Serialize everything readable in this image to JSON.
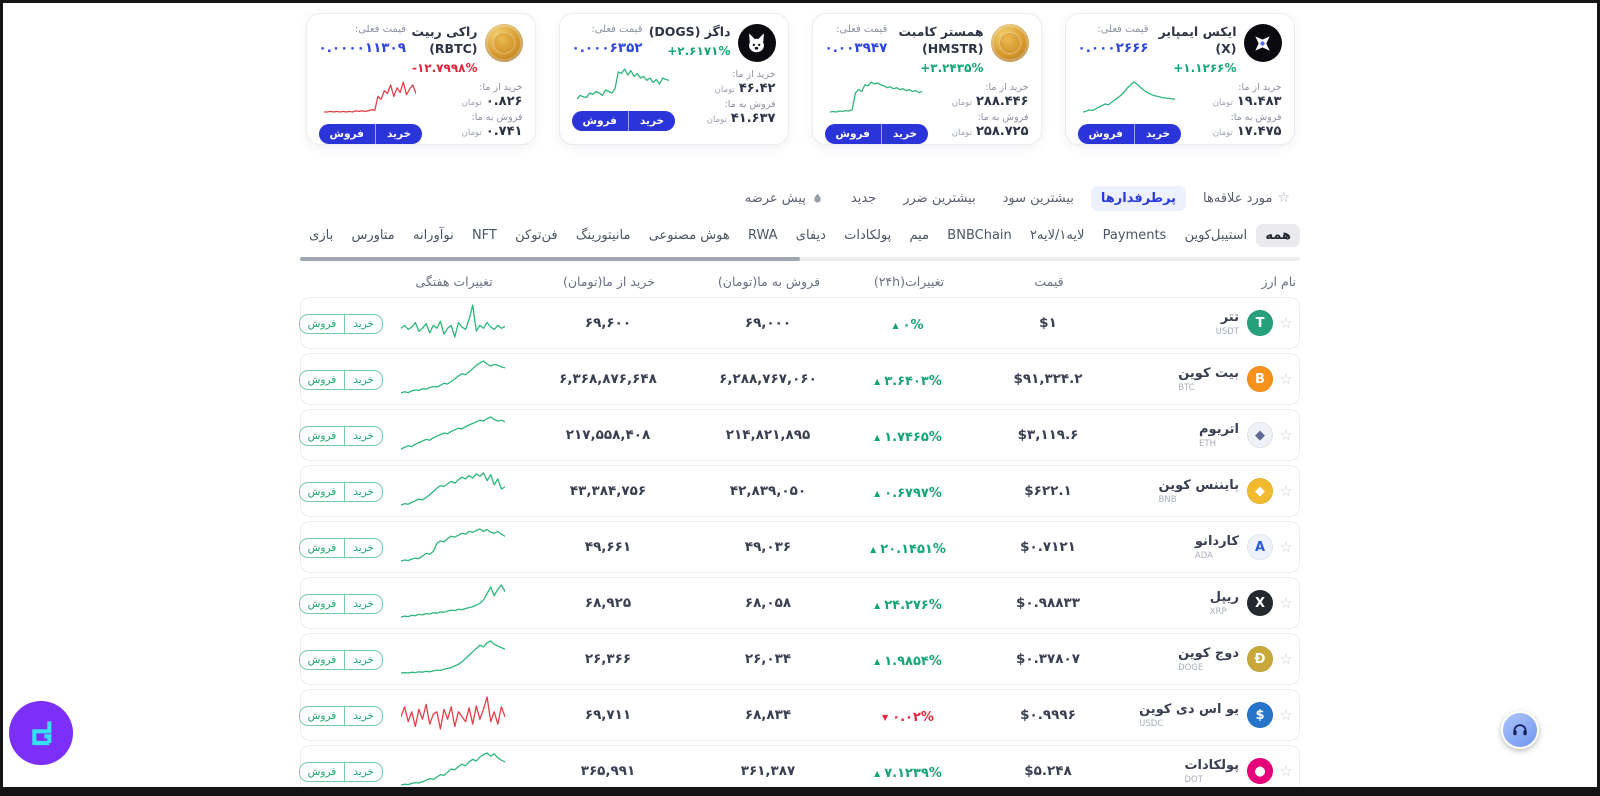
{
  "colors": {
    "accent_blue": "#2b34d8",
    "price_blue": "#2e45df",
    "green": "#17a673",
    "red": "#e3243b",
    "green_line": "#2eb67d",
    "red_line": "#e4404a",
    "active_tab_bg": "#edf0fe",
    "active_cat_bg": "#e9e9ee",
    "purple_fab": "#7b2ff7",
    "cyan_logo": "#35e0f2"
  },
  "icons": {
    "favorite_star": "☆",
    "arrow_up": "▲",
    "arrow_down": "▼"
  },
  "labels": {
    "current_price": "قیمت فعلی:",
    "buy_from_us": "خرید از ما:",
    "sell_to_us": "فروش به ما:",
    "toman": "تومان",
    "buy": "خرید",
    "sell": "فروش"
  },
  "cards": [
    {
      "name": "ایکس ایمپایر (X)",
      "change": "+۱.۱۲۶۶%",
      "trend": "up",
      "price": "۰.۰۰۰۲۶۶۶",
      "buy": "۱۹.۴۸۳",
      "sell": "۱۷.۴۷۵",
      "icon": "x-empire",
      "spark": [
        10,
        12,
        15,
        14,
        18,
        22,
        26,
        30,
        28,
        34,
        40,
        46,
        52,
        60,
        70,
        78,
        85,
        80,
        72,
        66,
        60,
        56,
        52,
        50,
        48,
        46,
        45,
        44,
        43,
        42
      ],
      "spark_trend": "up"
    },
    {
      "name": "همستر کامبت (HMSTR)",
      "change": "+۳.۲۴۳۵%",
      "trend": "up",
      "price": "۰.۰۰۳۹۴۷",
      "buy": "۲۸۸.۴۴۶",
      "sell": "۲۵۸.۷۲۵",
      "icon": "hmstr",
      "spark": [
        15,
        16,
        15,
        17,
        16,
        18,
        17,
        20,
        55,
        62,
        58,
        72,
        70,
        78,
        74,
        76,
        72,
        70,
        66,
        68,
        64,
        66,
        62,
        64,
        60,
        62,
        58,
        60,
        56,
        58
      ],
      "spark_trend": "up"
    },
    {
      "name": "داگز (DOGS)",
      "change": "+۲.۶۱۷۱%",
      "trend": "up",
      "price": "۰.۰۰۰۶۳۵۲",
      "buy": "۴۶.۴۲",
      "sell": "۴۱.۶۳۷",
      "icon": "dogs",
      "spark": [
        30,
        35,
        33,
        32,
        38,
        36,
        40,
        38,
        35,
        42,
        40,
        38,
        44,
        66,
        64,
        70,
        62,
        68,
        60,
        64,
        58,
        60,
        55,
        58,
        52,
        56,
        50,
        58,
        56,
        55
      ],
      "spark_trend": "up"
    },
    {
      "name": "راکی ربیت (RBTC)",
      "change": "-۱۲.۷۹۹۸%",
      "trend": "down",
      "price": "۰.۰۰۰۰۱۱۳۰۹",
      "buy": "۰.۸۲۶",
      "sell": "۰.۷۴۱",
      "icon": "rbtc",
      "spark": [
        8,
        8,
        9,
        8,
        9,
        8,
        9,
        8,
        9,
        8,
        10,
        9,
        10,
        9,
        10,
        12,
        11,
        35,
        30,
        45,
        40,
        55,
        35,
        50,
        42,
        60,
        38,
        48,
        55,
        40
      ],
      "spark_trend": "down"
    }
  ],
  "filter_tabs": [
    {
      "label": "مورد علاقه‌ها",
      "icon": "star",
      "active": false
    },
    {
      "label": "پرطرفدارها",
      "icon": null,
      "active": true
    },
    {
      "label": "بیشترین سود",
      "icon": null,
      "active": false
    },
    {
      "label": "بیشترین ضرر",
      "icon": null,
      "active": false
    },
    {
      "label": "جدید",
      "icon": null,
      "active": false
    },
    {
      "label": "پیش عرضه",
      "icon": "fire",
      "active": false
    }
  ],
  "category_tabs": [
    {
      "label": "همه",
      "active": true
    },
    {
      "label": "استیبل‌کوین",
      "active": false
    },
    {
      "label": "Payments",
      "active": false
    },
    {
      "label": "لایه۱/لایه۲",
      "active": false
    },
    {
      "label": "BNBChain",
      "active": false
    },
    {
      "label": "میم",
      "active": false
    },
    {
      "label": "پولکادات",
      "active": false
    },
    {
      "label": "دیفای",
      "active": false
    },
    {
      "label": "RWA",
      "active": false
    },
    {
      "label": "هوش مصنوعی",
      "active": false
    },
    {
      "label": "مانیتورینگ",
      "active": false
    },
    {
      "label": "فن‌توکن",
      "active": false
    },
    {
      "label": "NFT",
      "active": false
    },
    {
      "label": "نوآورانه",
      "active": false
    },
    {
      "label": "متاورس",
      "active": false
    },
    {
      "label": "بازی",
      "active": false
    }
  ],
  "table": {
    "headers": [
      "نام ارز",
      "قیمت",
      "تغییرات(۲۴h)",
      "فروش به ما(تومان)",
      "خرید از ما(تومان)",
      "تغییرات هفتگی"
    ],
    "rows": [
      {
        "name": "تتر",
        "symbol": "USDT",
        "icon": {
          "bg": "#26a17b",
          "fg": "#ffffff",
          "glyph": "T"
        },
        "price": "$۱",
        "change": "۰%",
        "trend": "up",
        "sell": "۶۹,۰۰۰",
        "buy": "۶۹,۶۰۰",
        "spark": [
          50,
          55,
          48,
          52,
          60,
          45,
          50,
          58,
          42,
          55,
          50,
          62,
          40,
          50,
          55,
          35,
          60,
          52,
          48,
          65,
          90,
          45,
          55,
          50,
          60,
          52,
          48,
          55,
          50,
          53
        ],
        "spark_trend": "up"
      },
      {
        "name": "بیت کوین",
        "symbol": "BTC",
        "icon": {
          "bg": "#f7931a",
          "fg": "#ffffff",
          "glyph": "B"
        },
        "price": "$۹۱,۳۲۴.۲",
        "change": "۳.۶۴۰۳%",
        "trend": "up",
        "sell": "۶,۲۸۸,۷۶۷,۰۶۰",
        "buy": "۶,۳۶۸,۸۷۶,۶۴۸",
        "spark": [
          15,
          18,
          16,
          20,
          22,
          21,
          25,
          24,
          28,
          30,
          29,
          33,
          38,
          36,
          42,
          48,
          55,
          60,
          58,
          65,
          72,
          80,
          85,
          90,
          83,
          78,
          82,
          80,
          76,
          74
        ],
        "spark_trend": "up"
      },
      {
        "name": "اتریوم",
        "symbol": "ETH",
        "icon": {
          "bg": "#f0f1f7",
          "fg": "#62688f",
          "glyph": "◆"
        },
        "price": "$۳,۱۱۹.۶",
        "change": "۱.۷۴۶۵%",
        "trend": "up",
        "sell": "۲۱۴,۸۲۱,۸۹۵",
        "buy": "۲۱۷,۵۵۸,۴۰۸",
        "spark": [
          10,
          14,
          18,
          16,
          22,
          26,
          30,
          34,
          32,
          38,
          42,
          46,
          50,
          48,
          54,
          58,
          62,
          60,
          66,
          70,
          74,
          78,
          82,
          80,
          86,
          90,
          84,
          80,
          82,
          78
        ],
        "spark_trend": "up"
      },
      {
        "name": "بایننس کوین",
        "symbol": "BNB",
        "icon": {
          "bg": "#f3ba2f",
          "fg": "#ffffff",
          "glyph": "◆"
        },
        "price": "$۶۲۲.۱",
        "change": "۰.۶۷۹۷%",
        "trend": "up",
        "sell": "۴۲,۸۳۹,۰۵۰",
        "buy": "۴۳,۳۸۴,۷۵۶",
        "spark": [
          12,
          15,
          14,
          18,
          22,
          26,
          24,
          30,
          36,
          44,
          52,
          58,
          56,
          62,
          68,
          64,
          72,
          78,
          74,
          82,
          76,
          86,
          80,
          88,
          70,
          84,
          60,
          74,
          50,
          55
        ],
        "spark_trend": "up"
      },
      {
        "name": "کاردانو",
        "symbol": "ADA",
        "icon": {
          "bg": "#eef3fb",
          "fg": "#2b5cd9",
          "glyph": "A"
        },
        "price": "$۰.۷۱۲۱",
        "change": "۲۰.۱۴۵۱%",
        "trend": "up",
        "sell": "۴۹,۰۳۶",
        "buy": "۴۹,۶۶۱",
        "spark": [
          8,
          10,
          9,
          12,
          14,
          13,
          18,
          24,
          22,
          28,
          45,
          50,
          48,
          55,
          60,
          58,
          62,
          66,
          64,
          70,
          68,
          72,
          75,
          70,
          74,
          68,
          66,
          70,
          64,
          60
        ],
        "spark_trend": "up"
      },
      {
        "name": "ریپل",
        "symbol": "XRP",
        "icon": {
          "bg": "#23292f",
          "fg": "#ffffff",
          "glyph": "X"
        },
        "price": "$۰.۹۸۸۳۳",
        "change": "۲۴.۲۷۶%",
        "trend": "up",
        "sell": "۶۸,۰۵۸",
        "buy": "۶۸,۹۲۵",
        "spark": [
          20,
          22,
          21,
          24,
          23,
          26,
          25,
          28,
          27,
          30,
          29,
          32,
          31,
          34,
          36,
          35,
          38,
          37,
          40,
          42,
          44,
          48,
          52,
          60,
          75,
          90,
          70,
          85,
          95,
          80
        ],
        "spark_trend": "up"
      },
      {
        "name": "دوج کوین",
        "symbol": "DOGE",
        "icon": {
          "bg": "#c9a93a",
          "fg": "#ffffff",
          "glyph": "Ð"
        },
        "price": "$۰.۳۷۸۰۷",
        "change": "۱.۹۸۵۴%",
        "trend": "up",
        "sell": "۲۶,۰۳۴",
        "buy": "۲۶,۳۶۶",
        "spark": [
          15,
          16,
          15,
          17,
          16,
          18,
          17,
          19,
          18,
          20,
          22,
          21,
          24,
          26,
          28,
          32,
          36,
          42,
          50,
          58,
          66,
          74,
          82,
          78,
          88,
          92,
          84,
          80,
          76,
          72
        ],
        "spark_trend": "up"
      },
      {
        "name": "یو اس دی کوین",
        "symbol": "USDC",
        "icon": {
          "bg": "#2775ca",
          "fg": "#ffffff",
          "glyph": "$"
        },
        "price": "$۰.۹۹۹۶",
        "change": "۰.۰۲%",
        "trend": "down",
        "sell": "۶۸,۸۳۴",
        "buy": "۶۹,۷۱۱",
        "spark": [
          50,
          70,
          40,
          60,
          30,
          65,
          45,
          75,
          35,
          55,
          60,
          25,
          65,
          45,
          70,
          30,
          60,
          50,
          40,
          68,
          35,
          72,
          45,
          65,
          90,
          40,
          60,
          35,
          70,
          50
        ],
        "spark_trend": "down"
      },
      {
        "name": "پولکادات",
        "symbol": "DOT",
        "icon": {
          "bg": "#e6007a",
          "fg": "#ffffff",
          "glyph": "●"
        },
        "price": "$۵.۲۴۸",
        "change": "۷.۱۲۳۹%",
        "trend": "up",
        "sell": "۳۶۱,۳۸۷",
        "buy": "۳۶۵,۹۹۱",
        "spark": [
          10,
          12,
          11,
          14,
          16,
          15,
          18,
          22,
          26,
          24,
          30,
          36,
          34,
          42,
          50,
          48,
          56,
          62,
          58,
          68,
          74,
          70,
          80,
          86,
          90,
          82,
          88,
          78,
          72,
          68
        ],
        "spark_trend": "up"
      }
    ]
  }
}
